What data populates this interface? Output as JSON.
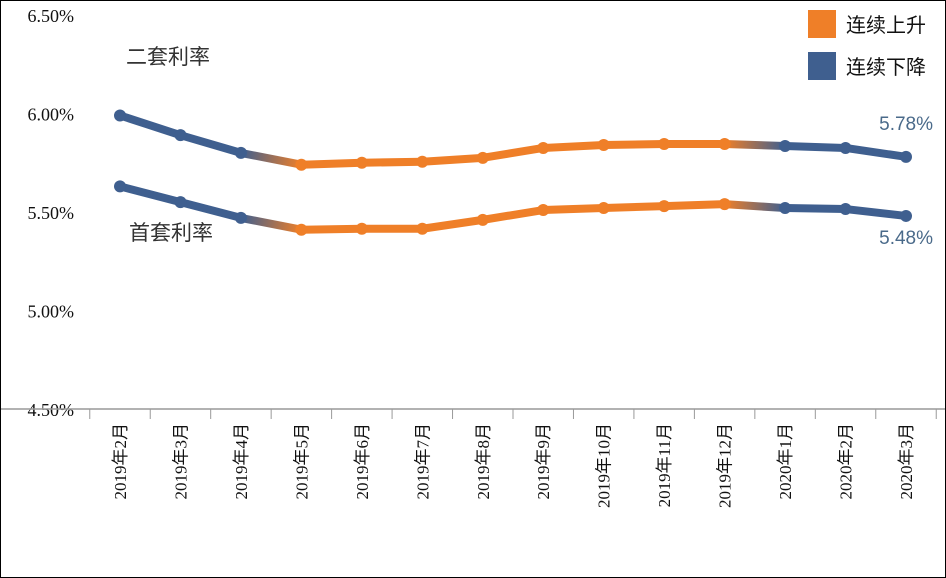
{
  "chart_data": {
    "type": "line",
    "categories": [
      "2019年2月",
      "2019年3月",
      "2019年4月",
      "2019年5月",
      "2019年6月",
      "2019年7月",
      "2019年8月",
      "2019年9月",
      "2019年10月",
      "2019年11月",
      "2019年12月",
      "2020年1月",
      "2020年2月",
      "2020年3月"
    ],
    "series": [
      {
        "name": "二套利率",
        "values": [
          5.99,
          5.89,
          5.8,
          5.74,
          5.75,
          5.755,
          5.775,
          5.825,
          5.84,
          5.845,
          5.845,
          5.835,
          5.825,
          5.78
        ]
      },
      {
        "name": "首套利率",
        "values": [
          5.63,
          5.55,
          5.47,
          5.41,
          5.415,
          5.415,
          5.46,
          5.51,
          5.52,
          5.53,
          5.54,
          5.52,
          5.515,
          5.48
        ]
      }
    ],
    "trend": [
      "down",
      "down",
      "up",
      "up",
      "up",
      "up",
      "up",
      "up",
      "up",
      "up",
      "down",
      "down",
      "down"
    ],
    "end_labels": {
      "series_0": "5.78%",
      "series_1": "5.48%"
    },
    "yticks": [
      "4.50%",
      "5.00%",
      "5.50%",
      "6.00%",
      "6.50%"
    ],
    "ytick_values": [
      4.5,
      5.0,
      5.5,
      6.0,
      6.5
    ],
    "ylim": [
      4.5,
      6.5
    ],
    "legend": {
      "placement": "top-right",
      "items": [
        {
          "label": "连续上升",
          "color": "#ef7f28"
        },
        {
          "label": "连续下降",
          "color": "#3f5f8f"
        }
      ]
    },
    "colors": {
      "up": "#ef7f28",
      "down": "#3f5f8f"
    },
    "grid": false
  }
}
